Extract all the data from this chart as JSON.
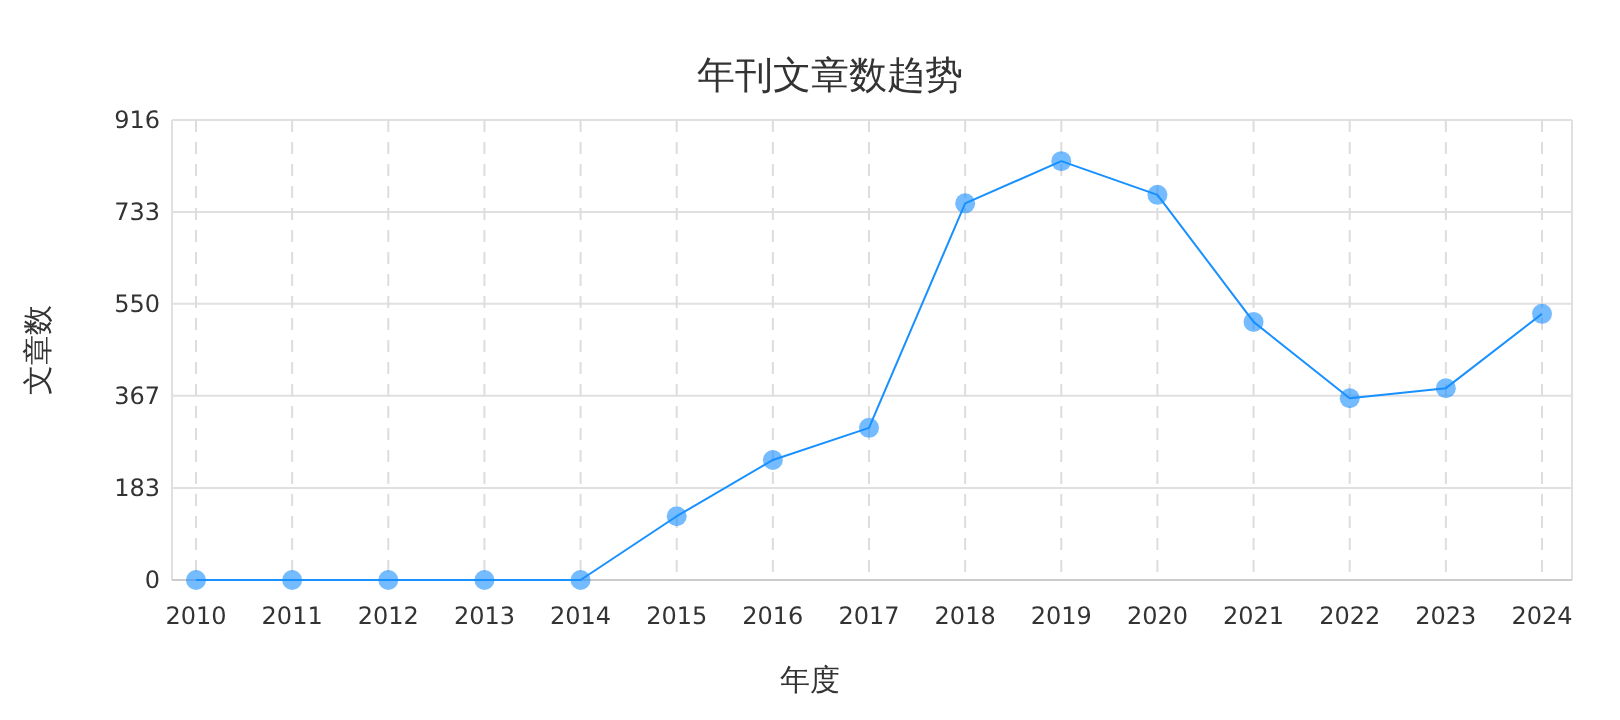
{
  "chart_data": {
    "type": "line",
    "title": "年刊文章数趋势",
    "xlabel": "年度",
    "ylabel": "文章数",
    "categories": [
      "2010",
      "2011",
      "2012",
      "2013",
      "2014",
      "2015",
      "2016",
      "2017",
      "2018",
      "2019",
      "2020",
      "2021",
      "2022",
      "2023",
      "2024"
    ],
    "series": [
      {
        "color": "#1890ff",
        "values": [
          0,
          0,
          0,
          0,
          0,
          127,
          239,
          303,
          750,
          834,
          767,
          514,
          362,
          382,
          530
        ]
      }
    ],
    "ylim": [
      0,
      916
    ],
    "yticks": [
      0,
      183,
      367,
      550,
      733,
      916
    ],
    "grid": true,
    "marker": "circle",
    "line_style": "solid"
  }
}
